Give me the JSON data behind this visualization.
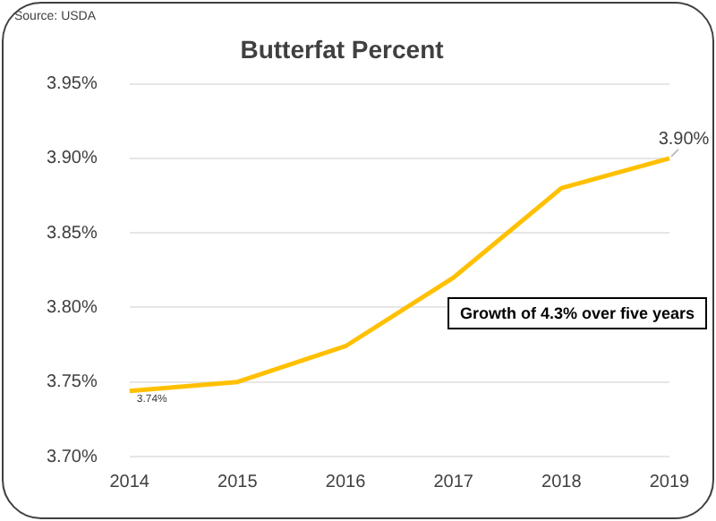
{
  "chart_data": {
    "type": "line",
    "title": "Butterfat Percent",
    "categories": [
      "2014",
      "2015",
      "2016",
      "2017",
      "2018",
      "2019"
    ],
    "series": [
      {
        "color": "#ffc000",
        "values": [
          3.744,
          3.75,
          3.774,
          3.82,
          3.88,
          3.9
        ],
        "value_labels": [
          "3.74%",
          null,
          null,
          null,
          null,
          "3.90%"
        ]
      }
    ],
    "ylim": [
      3.7,
      3.95
    ],
    "yticks": [
      {
        "value": 3.7,
        "label": "3.70%"
      },
      {
        "value": 3.75,
        "label": "3.75%"
      },
      {
        "value": 3.8,
        "label": "3.80%"
      },
      {
        "value": 3.85,
        "label": "3.85%"
      },
      {
        "value": 3.9,
        "label": "3.90%"
      },
      {
        "value": 3.95,
        "label": "3.95%"
      }
    ],
    "grid": "y",
    "legend": false,
    "marker": "none",
    "line_style": "solid",
    "annotations": [
      "Source: USDA",
      "Growth of 4.3% over five years"
    ]
  }
}
